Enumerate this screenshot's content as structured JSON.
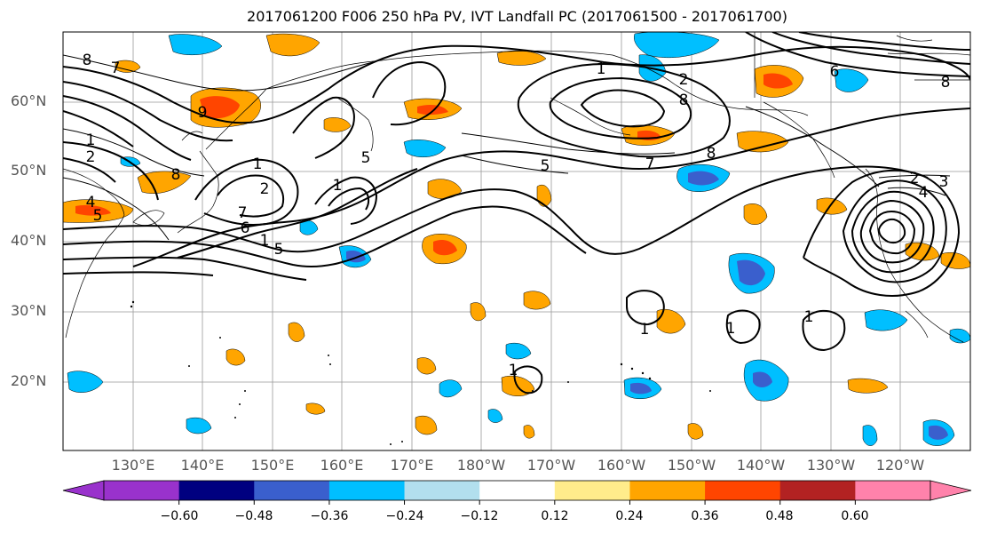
{
  "title": "2017061200 F006 250 hPa PV, IVT Landfall PC (2017061500 - 2017061700)",
  "map": {
    "lat_labels": [
      "60°N",
      "50°N",
      "40°N",
      "30°N",
      "20°N"
    ],
    "lon_labels": [
      "130°E",
      "140°E",
      "150°E",
      "160°E",
      "170°E",
      "180°W",
      "170°W",
      "160°W",
      "150°W",
      "140°W",
      "130°W",
      "120°W"
    ],
    "contour_labels": [
      "8",
      "7",
      "1",
      "2",
      "4",
      "5",
      "9",
      "8",
      "1",
      "2",
      "7",
      "6",
      "5",
      "1",
      "5",
      "1",
      "1",
      "2",
      "8",
      "5",
      "7",
      "8",
      "2",
      "3",
      "4",
      "1",
      "1",
      "1",
      "1",
      "6",
      "8"
    ]
  },
  "colorbar": {
    "ticks": [
      "−0.60",
      "−0.48",
      "−0.36",
      "−0.24",
      "−0.12",
      "0.12",
      "0.24",
      "0.36",
      "0.48",
      "0.60"
    ],
    "colors": [
      "#9932cc",
      "#000080",
      "#3a5fcd",
      "#00bfff",
      "#b2dfee",
      "#ffffff",
      "#ffec8b",
      "#ffa500",
      "#ff4500",
      "#b22222",
      "#ff82ab"
    ]
  }
}
